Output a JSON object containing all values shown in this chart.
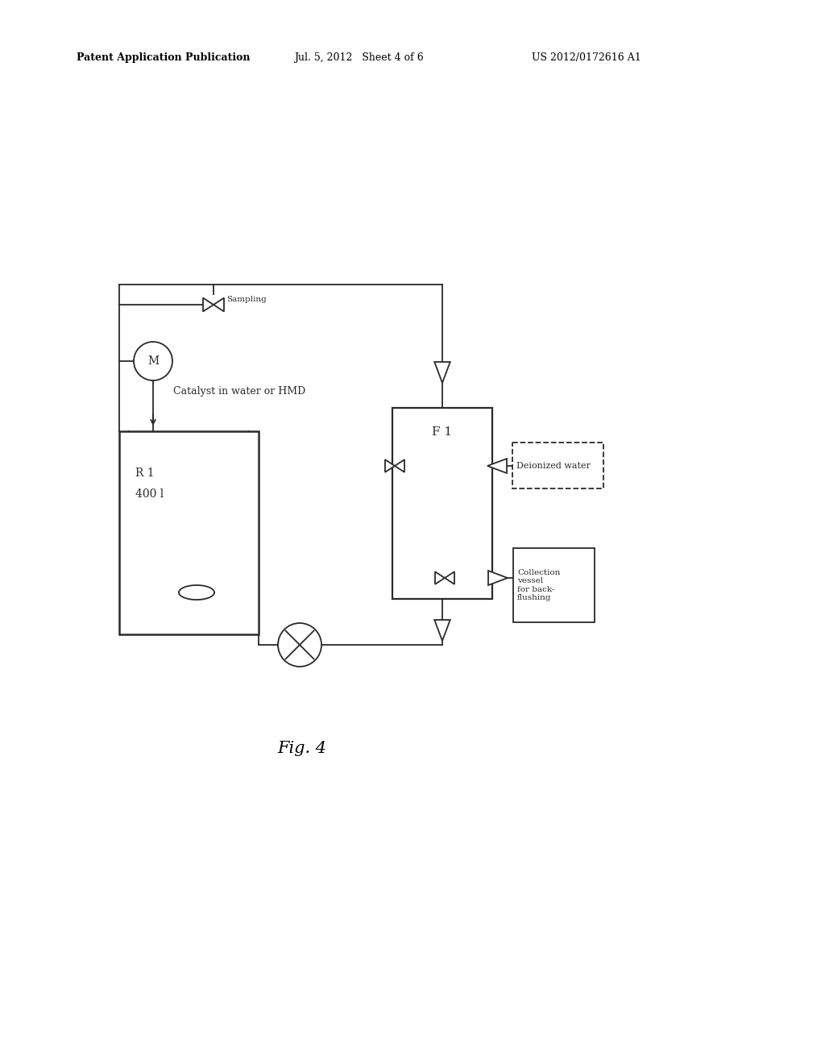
{
  "bg_color": "#ffffff",
  "lc": "#2a2a2a",
  "lw": 1.3,
  "header_left": "Patent Application Publication",
  "header_mid": "Jul. 5, 2012   Sheet 4 of 6",
  "header_right": "US 2012/0172616 A1",
  "fig_label": "Fig. 4",
  "reactor_line1": "R 1",
  "reactor_line2": "400 l",
  "filter_label": "F 1",
  "catalyst_label": "Catalyst in water or HMD",
  "sampling_label": "Sampling",
  "deionized_label": "Deionized water",
  "collection_label": "Collection\nvessel\nfor back-\nflushing"
}
